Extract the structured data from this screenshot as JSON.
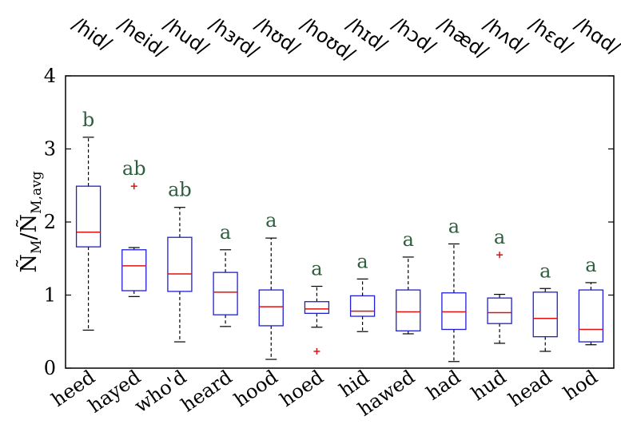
{
  "chart_data": {
    "type": "box",
    "ylabel": "Ñ_M/Ñ_M,avg",
    "ylabel_parts": {
      "main": "Ñ",
      "sub1": "M",
      "slash": "/",
      "main2": "Ñ",
      "sub2": "M,avg"
    },
    "ylim": [
      0,
      4
    ],
    "yticks": [
      "0",
      "1",
      "2",
      "3",
      "4"
    ],
    "categories": [
      "heed",
      "hayed",
      "who'd",
      "heard",
      "hood",
      "hoed",
      "hid",
      "hawed",
      "had",
      "hud",
      "head",
      "hod"
    ],
    "ipa": [
      "/hid/",
      "/heid/",
      "/hud/",
      "/hɜrd/",
      "/hʊd/",
      "/hoʊd/",
      "/hɪd/",
      "/hɔd/",
      "/hæd/",
      "/hʌd/",
      "/hɛd/",
      "/hɑd/"
    ],
    "boxes": [
      {
        "whisker_low": 0.52,
        "q1": 1.66,
        "median": 1.86,
        "q3": 2.49,
        "whisker_high": 3.16,
        "outliers": [],
        "group": "b"
      },
      {
        "whisker_low": 0.98,
        "q1": 1.06,
        "median": 1.4,
        "q3": 1.62,
        "whisker_high": 1.65,
        "outliers": [
          2.49
        ],
        "group": "ab"
      },
      {
        "whisker_low": 0.36,
        "q1": 1.05,
        "median": 1.29,
        "q3": 1.79,
        "whisker_high": 2.2,
        "outliers": [],
        "group": "ab"
      },
      {
        "whisker_low": 0.57,
        "q1": 0.73,
        "median": 1.04,
        "q3": 1.31,
        "whisker_high": 1.62,
        "outliers": [],
        "group": "a"
      },
      {
        "whisker_low": 0.12,
        "q1": 0.58,
        "median": 0.84,
        "q3": 1.07,
        "whisker_high": 1.78,
        "outliers": [],
        "group": "a"
      },
      {
        "whisker_low": 0.56,
        "q1": 0.75,
        "median": 0.81,
        "q3": 0.91,
        "whisker_high": 1.12,
        "outliers": [
          0.23
        ],
        "group": "a"
      },
      {
        "whisker_low": 0.5,
        "q1": 0.71,
        "median": 0.78,
        "q3": 0.99,
        "whisker_high": 1.22,
        "outliers": [],
        "group": "a"
      },
      {
        "whisker_low": 0.47,
        "q1": 0.51,
        "median": 0.77,
        "q3": 1.07,
        "whisker_high": 1.52,
        "outliers": [],
        "group": "a"
      },
      {
        "whisker_low": 0.09,
        "q1": 0.53,
        "median": 0.77,
        "q3": 1.03,
        "whisker_high": 1.7,
        "outliers": [],
        "group": "a"
      },
      {
        "whisker_low": 0.34,
        "q1": 0.61,
        "median": 0.76,
        "q3": 0.96,
        "whisker_high": 1.01,
        "outliers": [
          1.55
        ],
        "group": "a"
      },
      {
        "whisker_low": 0.23,
        "q1": 0.43,
        "median": 0.68,
        "q3": 1.04,
        "whisker_high": 1.09,
        "outliers": [],
        "group": "a"
      },
      {
        "whisker_low": 0.32,
        "q1": 0.36,
        "median": 0.53,
        "q3": 1.07,
        "whisker_high": 1.17,
        "outliers": [],
        "group": "a"
      }
    ],
    "grid": false,
    "colors": {
      "box": "#1f1fd6",
      "median": "#e01010",
      "whisker": "#000000",
      "outlier": "#e01010",
      "group_label": "#2e5e3e"
    }
  }
}
